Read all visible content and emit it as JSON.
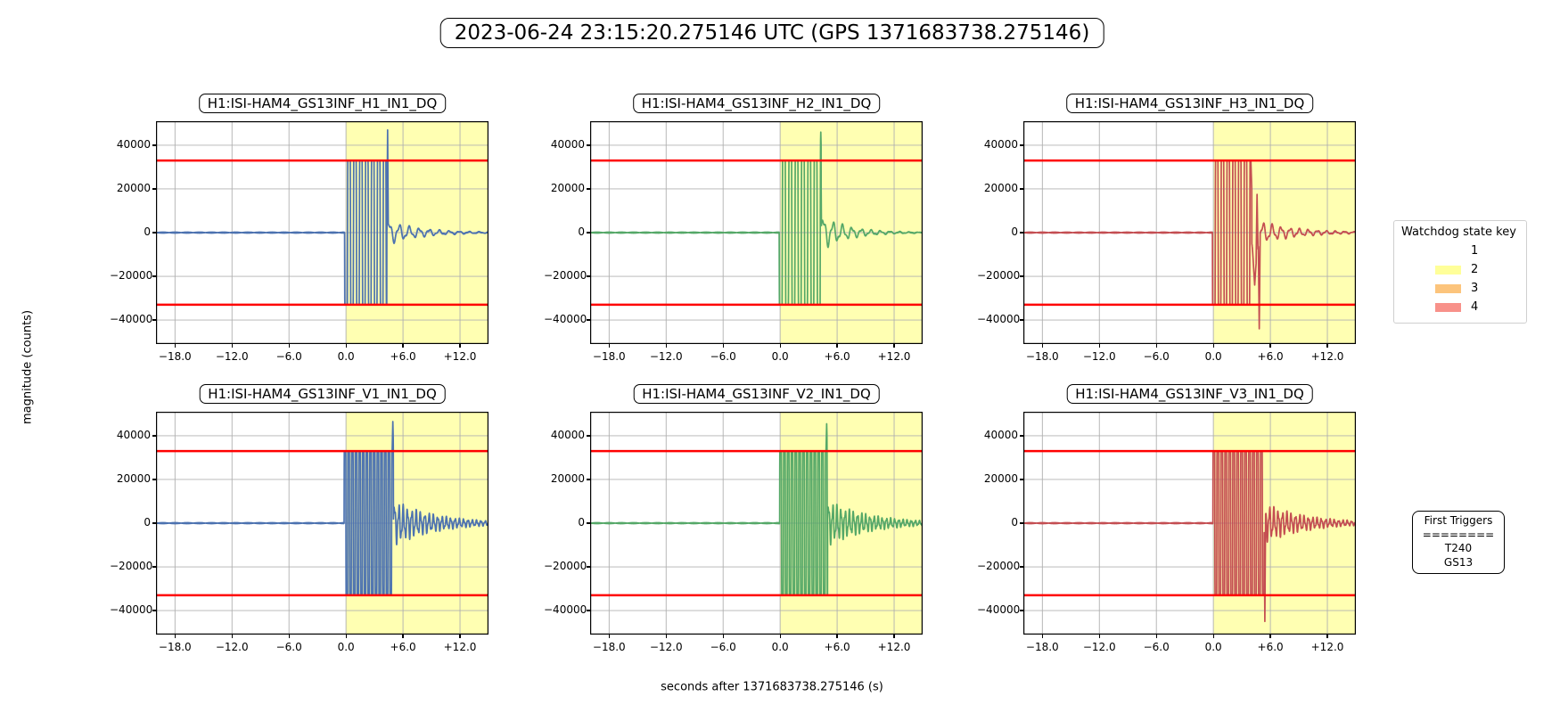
{
  "title": "2023-06-24 23:15:20.275146 UTC (GPS 1371683738.275146)",
  "figure": {
    "xlabel": "seconds after 1371683738.275146 (s)",
    "ylabel": "magnitude (counts)"
  },
  "legend": {
    "title": "Watchdog state key",
    "entries": [
      {
        "label": "1",
        "color": "#ffffff"
      },
      {
        "label": "2",
        "color": "#ffff99"
      },
      {
        "label": "3",
        "color": "#fcc47c"
      },
      {
        "label": "4",
        "color": "#f8918a"
      }
    ]
  },
  "triggers_box": {
    "title": "First Triggers",
    "separator": "========",
    "items": [
      "T240",
      "GS13"
    ]
  },
  "axes_shared": {
    "xlim": [
      -20,
      15
    ],
    "ylim": [
      -51000,
      51000
    ],
    "xticks": [
      -18,
      -12,
      -6,
      0,
      6,
      12
    ],
    "xtick_labels": [
      "−18.0",
      "−12.0",
      "−6.0",
      "0.0",
      "+6.0",
      "+12.0"
    ],
    "yticks": [
      40000,
      20000,
      0,
      -20000,
      -40000
    ],
    "ytick_labels": [
      "40000",
      "20000",
      "0",
      "−20000",
      "−40000"
    ],
    "grid_color": "#b0b0b0",
    "threshold_value": 33000,
    "threshold_color": "#ff0000",
    "shade_start": 0,
    "shade_color": "rgba(255,255,0,0.3)"
  },
  "chart_data": [
    {
      "type": "line",
      "title": "H1:ISI-HAM4_GS13INF_H1_IN1_DQ",
      "color": "#4c72b0",
      "signal": {
        "noise_amp": 220,
        "sat_start": -0.15,
        "sat_end": 4.3,
        "sat_freq_hz": 1.6,
        "sat_polarity": -1,
        "clip": 33000,
        "spikes": [
          {
            "t": 4.38,
            "v": 47000,
            "w": 0.07
          }
        ],
        "ring": {
          "amp": 4500,
          "freq_hz": 0.95,
          "tau_s": 3.5
        }
      }
    },
    {
      "type": "line",
      "title": "H1:ISI-HAM4_GS13INF_H2_IN1_DQ",
      "color": "#55a868",
      "signal": {
        "noise_amp": 220,
        "sat_start": -0.1,
        "sat_end": 4.32,
        "sat_freq_hz": 1.5,
        "sat_polarity": -1,
        "clip": 33000,
        "spikes": [
          {
            "t": 4.28,
            "v": 46000,
            "w": 0.07
          }
        ],
        "ring": {
          "amp": 6500,
          "freq_hz": 1.0,
          "tau_s": 2.8
        }
      }
    },
    {
      "type": "line",
      "title": "H1:ISI-HAM4_GS13INF_H3_IN1_DQ",
      "color": "#c44e52",
      "signal": {
        "noise_amp": 220,
        "sat_start": -0.1,
        "sat_end": 4.05,
        "sat_freq_hz": 1.65,
        "sat_polarity": -1,
        "clip": 33000,
        "spikes": [
          {
            "t": 4.35,
            "v": -24000,
            "w": 0.4
          },
          {
            "t": 4.6,
            "v": 17500,
            "w": 0.1
          },
          {
            "t": 4.83,
            "v": -44000,
            "w": 0.1
          }
        ],
        "ring": {
          "amp": 5000,
          "freq_hz": 1.05,
          "tau_s": 4.0
        }
      }
    },
    {
      "type": "line",
      "title": "H1:ISI-HAM4_GS13INF_V1_IN1_DQ",
      "color": "#4c72b0",
      "signal": {
        "noise_amp": 220,
        "sat_start": -0.2,
        "sat_end": 5.0,
        "sat_freq_hz": 2.6,
        "sat_polarity": 1,
        "clip": 33000,
        "spikes": [
          {
            "t": 4.93,
            "v": 46500,
            "w": 0.07
          }
        ],
        "ring": {
          "amp": 8000,
          "freq_hz": 2.2,
          "tau_s": 4.5
        }
      }
    },
    {
      "type": "line",
      "title": "H1:ISI-HAM4_GS13INF_V2_IN1_DQ",
      "color": "#55a868",
      "signal": {
        "noise_amp": 220,
        "sat_start": -0.05,
        "sat_end": 5.0,
        "sat_freq_hz": 2.5,
        "sat_polarity": 1,
        "clip": 33000,
        "spikes": [
          {
            "t": 4.9,
            "v": 45500,
            "w": 0.07
          }
        ],
        "ring": {
          "amp": 8000,
          "freq_hz": 2.3,
          "tau_s": 4.5
        }
      }
    },
    {
      "type": "line",
      "title": "H1:ISI-HAM4_GS13INF_V3_IN1_DQ",
      "color": "#c44e52",
      "signal": {
        "noise_amp": 220,
        "sat_start": -0.05,
        "sat_end": 5.35,
        "sat_freq_hz": 2.4,
        "sat_polarity": 1,
        "clip": 33000,
        "spikes": [
          {
            "t": 5.42,
            "v": -45000,
            "w": 0.08
          }
        ],
        "ring": {
          "amp": 7000,
          "freq_hz": 2.2,
          "tau_s": 4.5
        }
      }
    }
  ]
}
